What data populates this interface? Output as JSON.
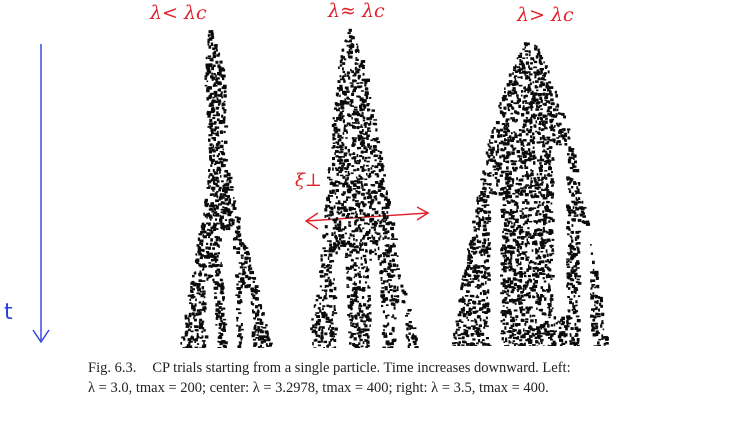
{
  "annotations": {
    "left": "λ< λc",
    "center": "λ≈ λc",
    "right": "λ> λc",
    "xi": "ξ⊥",
    "time": "t"
  },
  "caption": {
    "label": "Fig. 6.3.",
    "line1": "CP trials starting from a single particle. Time increases downward. Left:",
    "line2": "λ = 3.0, tmax = 200; center: λ = 3.2978, tmax = 400; right: λ = 3.5, tmax = 400."
  },
  "colors": {
    "ink": "#0a0a0a",
    "annotation_red": "#e0212a",
    "annotation_blue": "#2b3fe0"
  }
}
